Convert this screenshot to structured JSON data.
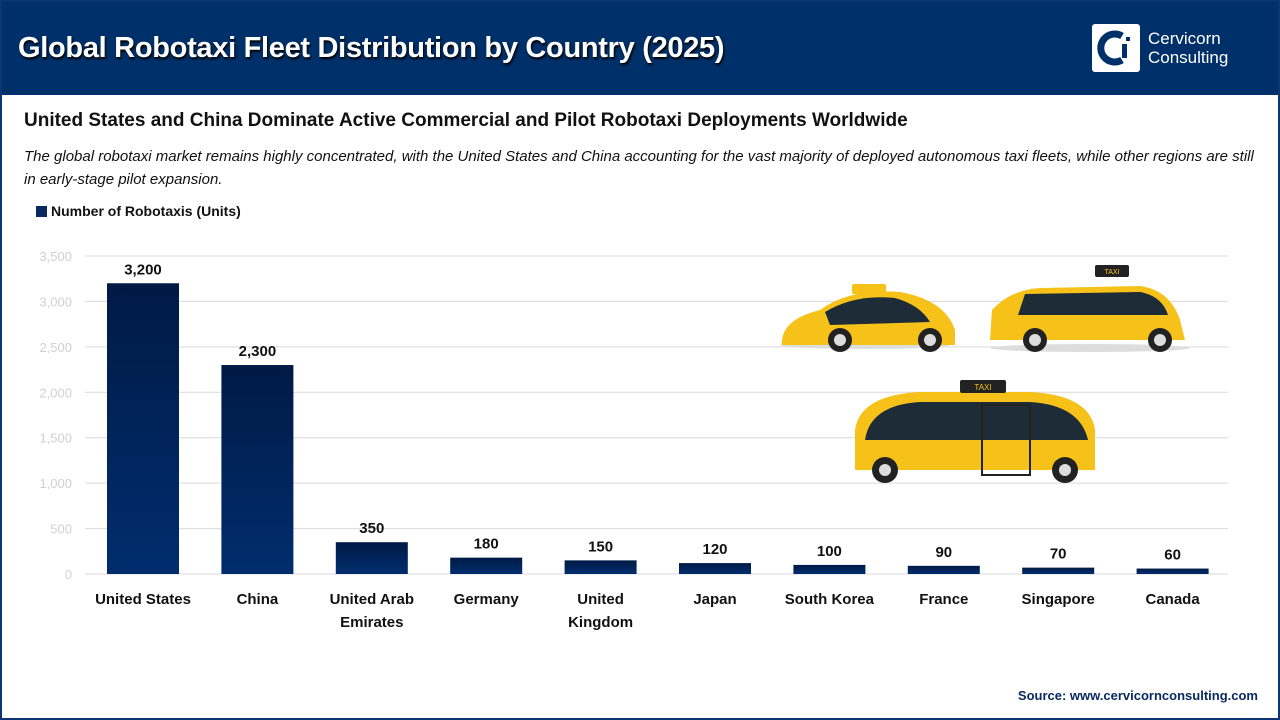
{
  "header": {
    "title": "Global Robotaxi Fleet Distribution by Country (2025)",
    "logo_line1": "Cervicorn",
    "logo_line2": "Consulting"
  },
  "subtitle": "United States and China Dominate Active Commercial and Pilot Robotaxi Deployments Worldwide",
  "description": "The global robotaxi market remains highly concentrated, with the United States and China accounting for the vast majority of deployed autonomous taxi fleets, while other regions are still in early-stage pilot expansion.",
  "source": "Source: www.cervicornconsulting.com",
  "taxi_sign": "TAXI",
  "chart_data": {
    "type": "bar",
    "categories": [
      "United States",
      "China",
      "United Arab Emirates",
      "Germany",
      "United Kingdom",
      "Japan",
      "South Korea",
      "France",
      "Singapore",
      "Canada"
    ],
    "series": [
      {
        "name": "Number of Robotaxis (Units)",
        "values": [
          3200,
          2300,
          350,
          180,
          150,
          120,
          100,
          90,
          70,
          60
        ],
        "labels": [
          "3,200",
          "2,300",
          "350",
          "180",
          "150",
          "120",
          "100",
          "90",
          "70",
          "60"
        ]
      }
    ],
    "ylim": [
      0,
      3500
    ],
    "yticks": [
      "0",
      "500",
      "1,000",
      "1,500",
      "2,000",
      "2,500",
      "3,000",
      "3,500"
    ],
    "grid": true,
    "legend": "top-left",
    "colors": {
      "bar_top": "#001a45",
      "bar_bottom": "#012d6e"
    }
  }
}
